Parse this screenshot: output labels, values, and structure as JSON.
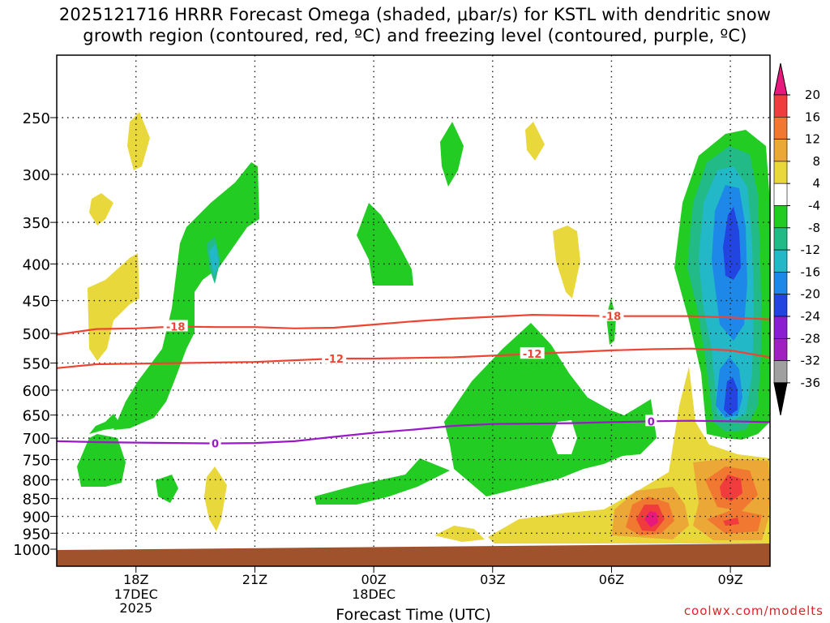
{
  "title": {
    "line1": "2025121716 HRRR Forecast Omega (shaded, μbar/s) for KSTL with dendritic snow",
    "line2": "growth region (contoured, red, ºC) and freezing level (contoured, purple, ºC)"
  },
  "credit": "coolwx.com/modelts",
  "chart_data": {
    "type": "time-height contour",
    "xlabel": "Forecast Time (UTC)",
    "ylabel": "",
    "x_range_hours": [
      16,
      10
    ],
    "ylim": [
      1000,
      200
    ],
    "y_ticks": [
      250,
      300,
      350,
      400,
      450,
      500,
      550,
      600,
      650,
      700,
      750,
      800,
      850,
      900,
      950,
      1000
    ],
    "x_ticks": [
      {
        "hour": 18,
        "label": "18Z",
        "sub": [
          "17DEC",
          "2025"
        ]
      },
      {
        "hour": 21,
        "label": "21Z",
        "sub": []
      },
      {
        "hour": 24,
        "label": "00Z",
        "sub": [
          "18DEC"
        ]
      },
      {
        "hour": 27,
        "label": "03Z",
        "sub": []
      },
      {
        "hour": 30,
        "label": "06Z",
        "sub": []
      },
      {
        "hour": 33,
        "label": "09Z",
        "sub": []
      }
    ],
    "grid": "dotted",
    "colorbar": {
      "position": "right",
      "labels": [
        "20",
        "16",
        "12",
        "8",
        "4",
        "-4",
        "-8",
        "-12",
        "-16",
        "-20",
        "-24",
        "-28",
        "-32",
        "-36"
      ],
      "colors": [
        "#e8197c",
        "#f03c3c",
        "#f07830",
        "#eca836",
        "#e8d83c",
        "#ffffff",
        "#22cc22",
        "#22bb88",
        "#22b8c8",
        "#1e88e8",
        "#2244e0",
        "#8a1ed0",
        "#a020c0",
        "#a0a0a0",
        "#000000"
      ]
    },
    "contour_series": [
      {
        "name": "-18",
        "color": "#ee4433",
        "points": [
          [
            16,
            502
          ],
          [
            17,
            493
          ],
          [
            18,
            492
          ],
          [
            19,
            489
          ],
          [
            20,
            490
          ],
          [
            21,
            490
          ],
          [
            22,
            492
          ],
          [
            23,
            491
          ],
          [
            24,
            486
          ],
          [
            25,
            481
          ],
          [
            26,
            477
          ],
          [
            27,
            474
          ],
          [
            28,
            471
          ],
          [
            29,
            472
          ],
          [
            30,
            473
          ],
          [
            31,
            473
          ],
          [
            32,
            473
          ],
          [
            33,
            475
          ],
          [
            34,
            478
          ]
        ],
        "labels_at": [
          19,
          30
        ]
      },
      {
        "name": "-12",
        "color": "#ee4433",
        "points": [
          [
            16,
            559
          ],
          [
            17,
            552
          ],
          [
            18,
            551
          ],
          [
            19,
            550
          ],
          [
            20,
            549
          ],
          [
            21,
            548
          ],
          [
            22,
            545
          ],
          [
            23,
            542
          ],
          [
            24,
            542
          ],
          [
            25,
            541
          ],
          [
            26,
            540
          ],
          [
            27,
            537
          ],
          [
            28,
            534
          ],
          [
            29,
            531
          ],
          [
            30,
            528
          ],
          [
            31,
            526
          ],
          [
            32,
            525
          ],
          [
            33,
            528
          ],
          [
            34,
            540
          ]
        ],
        "labels_at": [
          23,
          28
        ]
      },
      {
        "name": "0",
        "color": "#9a18c8",
        "points": [
          [
            16,
            707
          ],
          [
            17,
            709
          ],
          [
            18,
            710
          ],
          [
            19,
            711
          ],
          [
            20,
            712
          ],
          [
            21,
            711
          ],
          [
            22,
            707
          ],
          [
            23,
            697
          ],
          [
            24,
            688
          ],
          [
            25,
            681
          ],
          [
            26,
            673
          ],
          [
            27,
            669
          ],
          [
            28,
            668
          ],
          [
            29,
            667
          ],
          [
            30,
            665
          ],
          [
            31,
            663
          ],
          [
            32,
            662
          ],
          [
            33,
            663
          ],
          [
            34,
            665
          ]
        ],
        "labels_at": [
          20,
          31
        ]
      }
    ]
  }
}
